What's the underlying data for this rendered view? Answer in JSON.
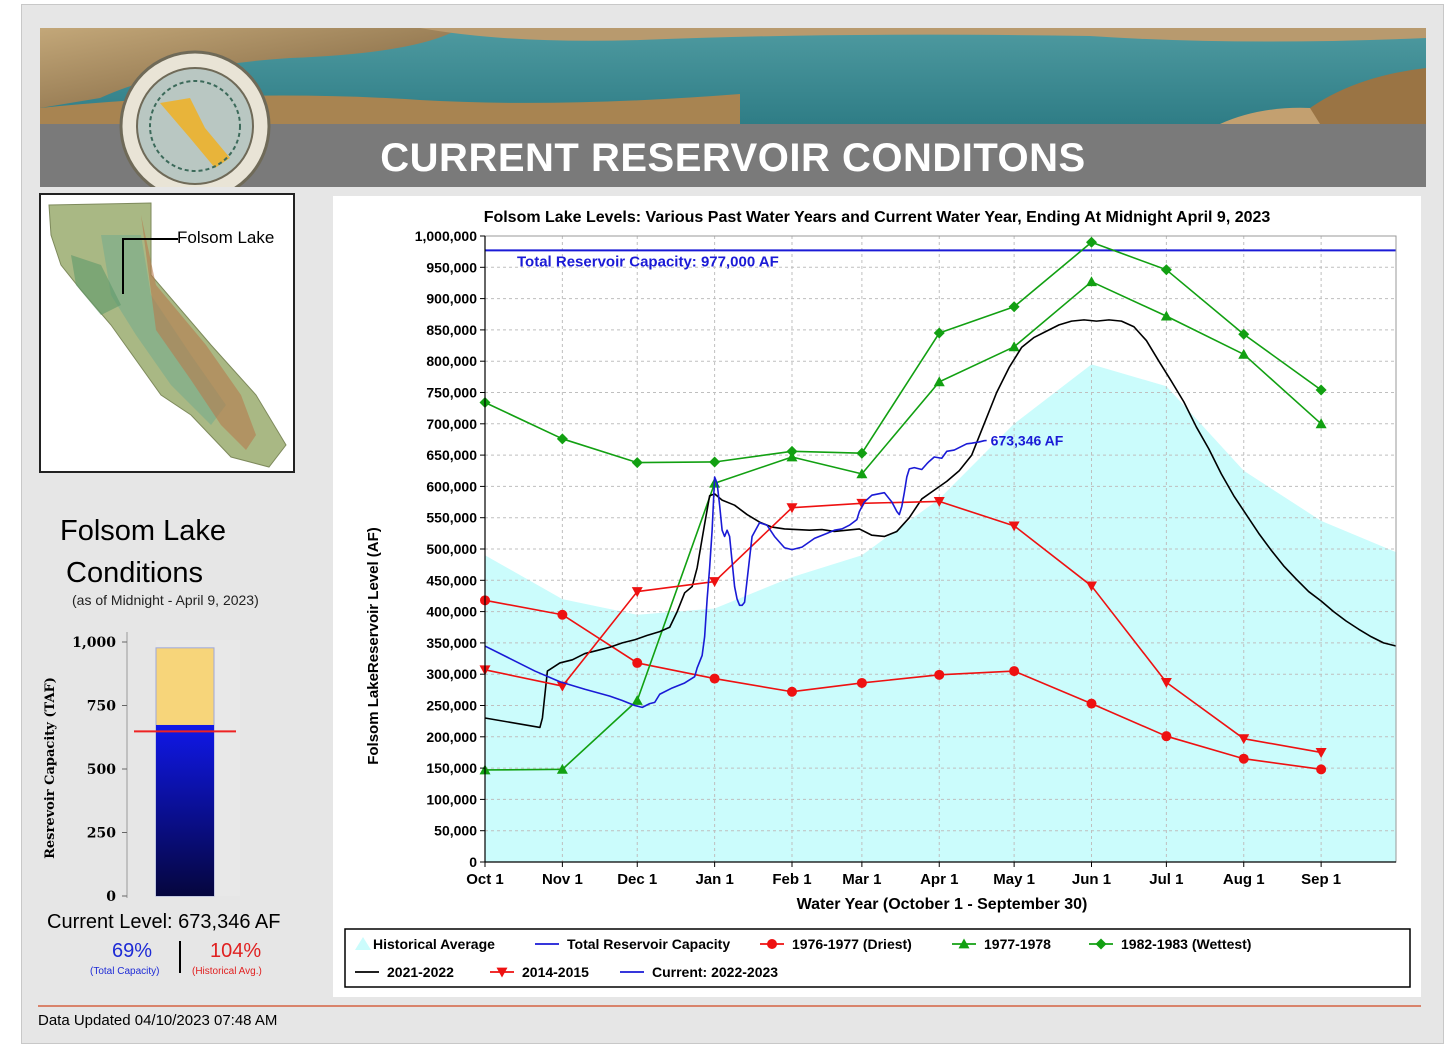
{
  "header": {
    "title": "CURRENT RESERVOIR CONDITONS"
  },
  "map": {
    "label": "Folsom Lake"
  },
  "conditions": {
    "title_line1": "Folsom Lake",
    "title_line2": "Conditions",
    "subtitle": "(as of Midnight - April 9, 2023)",
    "gauge": {
      "ylabel": "Resrevoir Capacity (TAF)",
      "ticks": [
        "1,000",
        "750",
        "500",
        "250",
        "0"
      ],
      "ymax_taf": 1000,
      "capacity_taf": 977,
      "current_taf": 673.346,
      "historical_avg_taf": 648,
      "colors": {
        "capacity": "#f7d57a",
        "current_top": "#1018e8",
        "current_bottom": "#05063e",
        "avg_line": "#ee2222"
      }
    },
    "current_level_text": "Current Level: 673,346 AF",
    "pct_capacity": "69%",
    "pct_capacity_label": "(Total Capacity)",
    "pct_historical": "104%",
    "pct_historical_label": "(Historical Avg.)"
  },
  "footer": {
    "updated": "Data Updated 04/10/2023 07:48 AM"
  },
  "chart_data": {
    "type": "line",
    "title": "Folsom Lake Levels: Various Past Water Years and Current Water Year, Ending At Midnight April 9, 2023",
    "xlabel": "Water Year (October 1 - September 30)",
    "ylabel": "Folsom LakeReservoir Level (AF)",
    "x_unit": "days since Oct 1",
    "xlim": [
      0,
      365
    ],
    "ylim": [
      0,
      1000000
    ],
    "grid": true,
    "legend_position": "bottom",
    "x_ticks": [
      {
        "label": "Oct 1",
        "x": 0
      },
      {
        "label": "Nov 1",
        "x": 31
      },
      {
        "label": "Dec 1",
        "x": 61
      },
      {
        "label": "Jan 1",
        "x": 92
      },
      {
        "label": "Feb 1",
        "x": 123
      },
      {
        "label": "Mar 1",
        "x": 151
      },
      {
        "label": "Apr 1",
        "x": 182
      },
      {
        "label": "May 1",
        "x": 212
      },
      {
        "label": "Jun 1",
        "x": 243
      },
      {
        "label": "Jul 1",
        "x": 273
      },
      {
        "label": "Aug 1",
        "x": 304
      },
      {
        "label": "Sep 1",
        "x": 335
      }
    ],
    "y_ticks": [
      0,
      50000,
      100000,
      150000,
      200000,
      250000,
      300000,
      350000,
      400000,
      450000,
      500000,
      550000,
      600000,
      650000,
      700000,
      750000,
      800000,
      850000,
      900000,
      950000,
      1000000
    ],
    "y_tick_labels": [
      "0",
      "50,000",
      "100,000",
      "150,000",
      "200,000",
      "250,000",
      "300,000",
      "350,000",
      "400,000",
      "450,000",
      "500,000",
      "550,000",
      "600,000",
      "650,000",
      "700,000",
      "750,000",
      "800,000",
      "850,000",
      "900,000",
      "950,000",
      "1,000,000"
    ],
    "capacity": {
      "name": "Total Reservoir Capacity",
      "value": 977000,
      "label": "Total Reservoir Capacity: 977,000 AF",
      "color": "#1a1ad6"
    },
    "historical_average": {
      "name": "Historical Average",
      "color": "#cbfcfc",
      "x": [
        0,
        31,
        61,
        92,
        123,
        151,
        182,
        212,
        243,
        273,
        304,
        335,
        365
      ],
      "y": [
        490000,
        420000,
        395000,
        405000,
        455000,
        490000,
        580000,
        700000,
        795000,
        760000,
        625000,
        545000,
        495000
      ]
    },
    "series": [
      {
        "name": "1976-1977 (Driest)",
        "color": "#ee1111",
        "marker": "circle",
        "x": [
          0,
          31,
          61,
          92,
          123,
          151,
          182,
          212,
          243,
          273,
          304,
          335
        ],
        "y": [
          418000,
          395000,
          318000,
          293000,
          272000,
          286000,
          299000,
          305000,
          253000,
          201000,
          165000,
          148000
        ]
      },
      {
        "name": "1977-1978",
        "color": "#12a012",
        "marker": "triangle-up",
        "x": [
          0,
          31,
          61,
          92,
          123,
          151,
          182,
          212,
          243,
          273,
          304,
          335
        ],
        "y": [
          147000,
          148000,
          258000,
          605000,
          647000,
          620000,
          767000,
          823000,
          927000,
          872000,
          811000,
          700000
        ]
      },
      {
        "name": "1982-1983 (Wettest)",
        "color": "#12a012",
        "marker": "diamond",
        "x": [
          0,
          31,
          61,
          92,
          123,
          151,
          182,
          212,
          243,
          273,
          304,
          335
        ],
        "y": [
          734000,
          676000,
          638000,
          639000,
          656000,
          653000,
          845000,
          887000,
          990000,
          946000,
          843000,
          754000
        ]
      },
      {
        "name": "2021-2022",
        "color": "#000000",
        "marker": "none",
        "x": [
          0,
          22,
          23,
          25,
          30,
          35,
          40,
          45,
          50,
          55,
          60,
          65,
          70,
          74,
          77,
          80,
          83,
          85,
          88,
          90,
          92,
          95,
          100,
          105,
          110,
          115,
          120,
          125,
          130,
          135,
          140,
          145,
          150,
          155,
          160,
          165,
          170,
          175,
          180,
          185,
          190,
          195,
          200,
          205,
          210,
          215,
          220,
          225,
          230,
          235,
          240,
          245,
          250,
          255,
          260,
          265,
          270,
          275,
          280,
          285,
          290,
          295,
          300,
          305,
          310,
          315,
          320,
          325,
          330,
          335,
          340,
          345,
          350,
          355,
          360,
          365
        ],
        "y": [
          230000,
          215000,
          230000,
          305000,
          318000,
          323000,
          333000,
          338000,
          343000,
          350000,
          355000,
          362000,
          368000,
          375000,
          400000,
          430000,
          440000,
          470000,
          540000,
          585000,
          588000,
          578000,
          570000,
          555000,
          543000,
          535000,
          532000,
          531000,
          530000,
          531000,
          528000,
          530000,
          532000,
          522000,
          520000,
          528000,
          550000,
          580000,
          594000,
          608000,
          625000,
          650000,
          700000,
          750000,
          790000,
          822000,
          838000,
          848000,
          858000,
          864000,
          866000,
          864000,
          866000,
          864000,
          855000,
          833000,
          800000,
          768000,
          735000,
          695000,
          660000,
          620000,
          585000,
          555000,
          525000,
          498000,
          473000,
          452000,
          432000,
          417000,
          400000,
          385000,
          372000,
          360000,
          350000,
          345000
        ]
      },
      {
        "name": "2014-2015",
        "color": "#ee1111",
        "marker": "triangle-down",
        "x": [
          0,
          31,
          61,
          92,
          123,
          151,
          182,
          212,
          243,
          273,
          304,
          335
        ],
        "y": [
          307000,
          281000,
          432000,
          448000,
          566000,
          573000,
          576000,
          537000,
          441000,
          287000,
          197000,
          175000
        ]
      },
      {
        "name": "Current: 2022-2023",
        "color": "#1a1ad6",
        "marker": "none",
        "x": [
          0,
          10,
          20,
          30,
          40,
          50,
          55,
          60,
          63,
          66,
          68,
          70,
          75,
          80,
          84,
          85,
          86,
          87,
          88,
          89,
          90,
          91,
          92,
          93,
          94,
          95,
          96,
          97,
          98,
          99,
          100,
          101,
          102,
          103,
          104,
          105,
          107,
          110,
          113,
          116,
          120,
          123,
          127,
          132,
          137,
          140,
          143,
          146,
          149,
          150,
          152,
          155,
          160,
          163,
          165,
          166,
          167,
          168,
          169,
          170,
          172,
          175,
          177,
          178,
          180,
          183,
          185,
          188,
          190,
          193,
          195,
          198,
          200,
          201
        ],
        "y": [
          345000,
          325000,
          305000,
          288000,
          276000,
          265000,
          258000,
          250000,
          247000,
          253000,
          255000,
          268000,
          278000,
          286000,
          296000,
          310000,
          320000,
          330000,
          360000,
          420000,
          470000,
          530000,
          615000,
          605000,
          570000,
          530000,
          520000,
          530000,
          520000,
          480000,
          440000,
          420000,
          410000,
          410000,
          415000,
          450000,
          520000,
          542000,
          538000,
          520000,
          502000,
          499000,
          503000,
          517000,
          525000,
          530000,
          532000,
          538000,
          547000,
          560000,
          575000,
          586000,
          590000,
          575000,
          560000,
          555000,
          568000,
          590000,
          615000,
          628000,
          630000,
          627000,
          636000,
          640000,
          647000,
          645000,
          656000,
          658000,
          662000,
          668000,
          669000,
          671000,
          673000,
          673346
        ]
      }
    ],
    "current_label": "673,346 AF",
    "legend": [
      {
        "name": "Historical Average",
        "type": "area",
        "color": "#cbfcfc"
      },
      {
        "name": "Total Reservoir Capacity",
        "type": "line",
        "color": "#1a1ad6",
        "marker": "none"
      },
      {
        "name": "1976-1977 (Driest)",
        "type": "line",
        "color": "#ee1111",
        "marker": "circle"
      },
      {
        "name": "1977-1978",
        "type": "line",
        "color": "#12a012",
        "marker": "triangle-up"
      },
      {
        "name": "1982-1983 (Wettest)",
        "type": "line",
        "color": "#12a012",
        "marker": "diamond"
      },
      {
        "name": "2021-2022",
        "type": "line",
        "color": "#000000",
        "marker": "none"
      },
      {
        "name": "2014-2015",
        "type": "line",
        "color": "#ee1111",
        "marker": "triangle-down"
      },
      {
        "name": "Current: 2022-2023",
        "type": "line",
        "color": "#1a1ad6",
        "marker": "none"
      }
    ]
  }
}
